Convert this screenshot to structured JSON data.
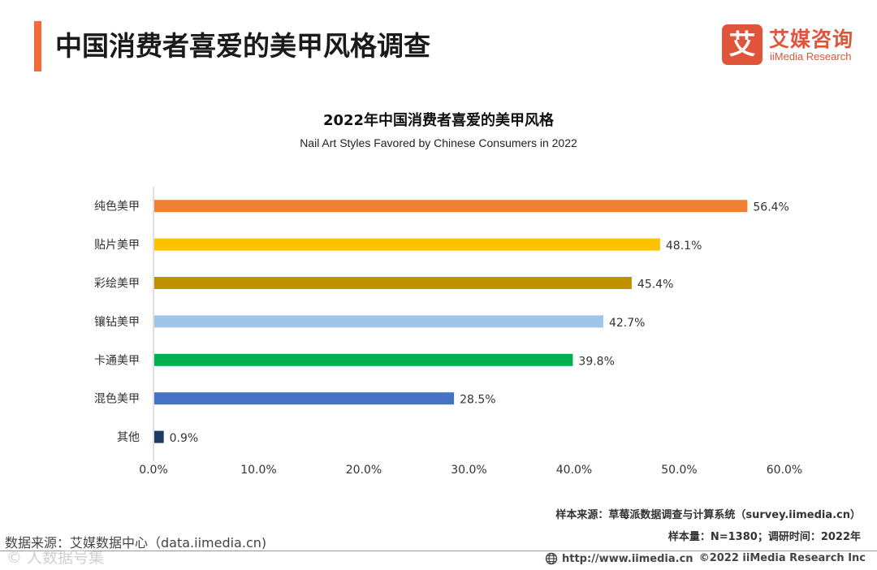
{
  "colors": {
    "accent": "#f26b3a",
    "logo_red": "#e0543a",
    "axis": "#bfbfbf",
    "text": "#333333"
  },
  "header": {
    "title": "中国消费者喜爱的美甲风格调查",
    "logo_mark": "艾",
    "logo_cn": "艾媒咨询",
    "logo_en": "iiMedia Research"
  },
  "chart_data": {
    "type": "bar",
    "orientation": "horizontal",
    "title": "2022年中国消费者喜爱的美甲风格",
    "subtitle": "Nail Art Styles Favored by Chinese Consumers in 2022",
    "categories": [
      "纯色美甲",
      "贴片美甲",
      "彩绘美甲",
      "镶钻美甲",
      "卡通美甲",
      "混色美甲",
      "其他"
    ],
    "values": [
      56.4,
      48.1,
      45.4,
      42.7,
      39.8,
      28.5,
      0.9
    ],
    "value_labels": [
      "56.4%",
      "48.1%",
      "45.4%",
      "42.7%",
      "39.8%",
      "28.5%",
      "0.9%"
    ],
    "colors": [
      "#f07f36",
      "#fdc200",
      "#bf9000",
      "#9fc5e8",
      "#00b050",
      "#4472c4",
      "#1f3864"
    ],
    "xlim": [
      0,
      60
    ],
    "xticks": [
      0,
      10,
      20,
      30,
      40,
      50,
      60
    ],
    "xtick_labels": [
      "0.0%",
      "10.0%",
      "20.0%",
      "30.0%",
      "40.0%",
      "50.0%",
      "60.0%"
    ],
    "xlabel": "",
    "ylabel": "",
    "grid": false
  },
  "footer": {
    "sample_source": "样本来源：草莓派数据调查与计算系统（survey.iimedia.cn）",
    "sample_size": "样本量：N=1380；调研时间：2022年",
    "data_source": "数据来源：艾媒数据中心（data.iimedia.cn)",
    "watermark": "© 人数据号集",
    "url": "http://www.iimedia.cn",
    "copyright": "©2022  iiMedia Research  Inc"
  }
}
